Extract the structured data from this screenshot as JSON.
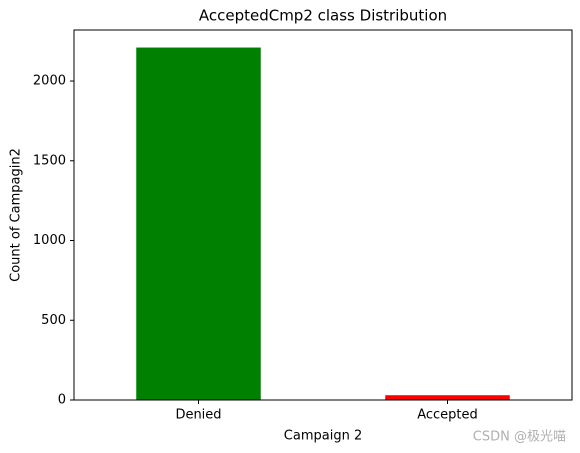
{
  "chart_data": {
    "type": "bar",
    "title": "AcceptedCmp2 class Distribution",
    "x_label": "Campaign 2",
    "y_label": "Count of Campagin2",
    "categories": [
      "Denied",
      "Accepted"
    ],
    "values": [
      2210,
      30
    ],
    "colors": [
      "#008000",
      "#ff0000"
    ],
    "ylim": [
      0,
      2320
    ],
    "yticks": [
      0,
      500,
      1000,
      1500,
      2000
    ],
    "grid": false
  },
  "watermark": "CSDN @极光喵"
}
